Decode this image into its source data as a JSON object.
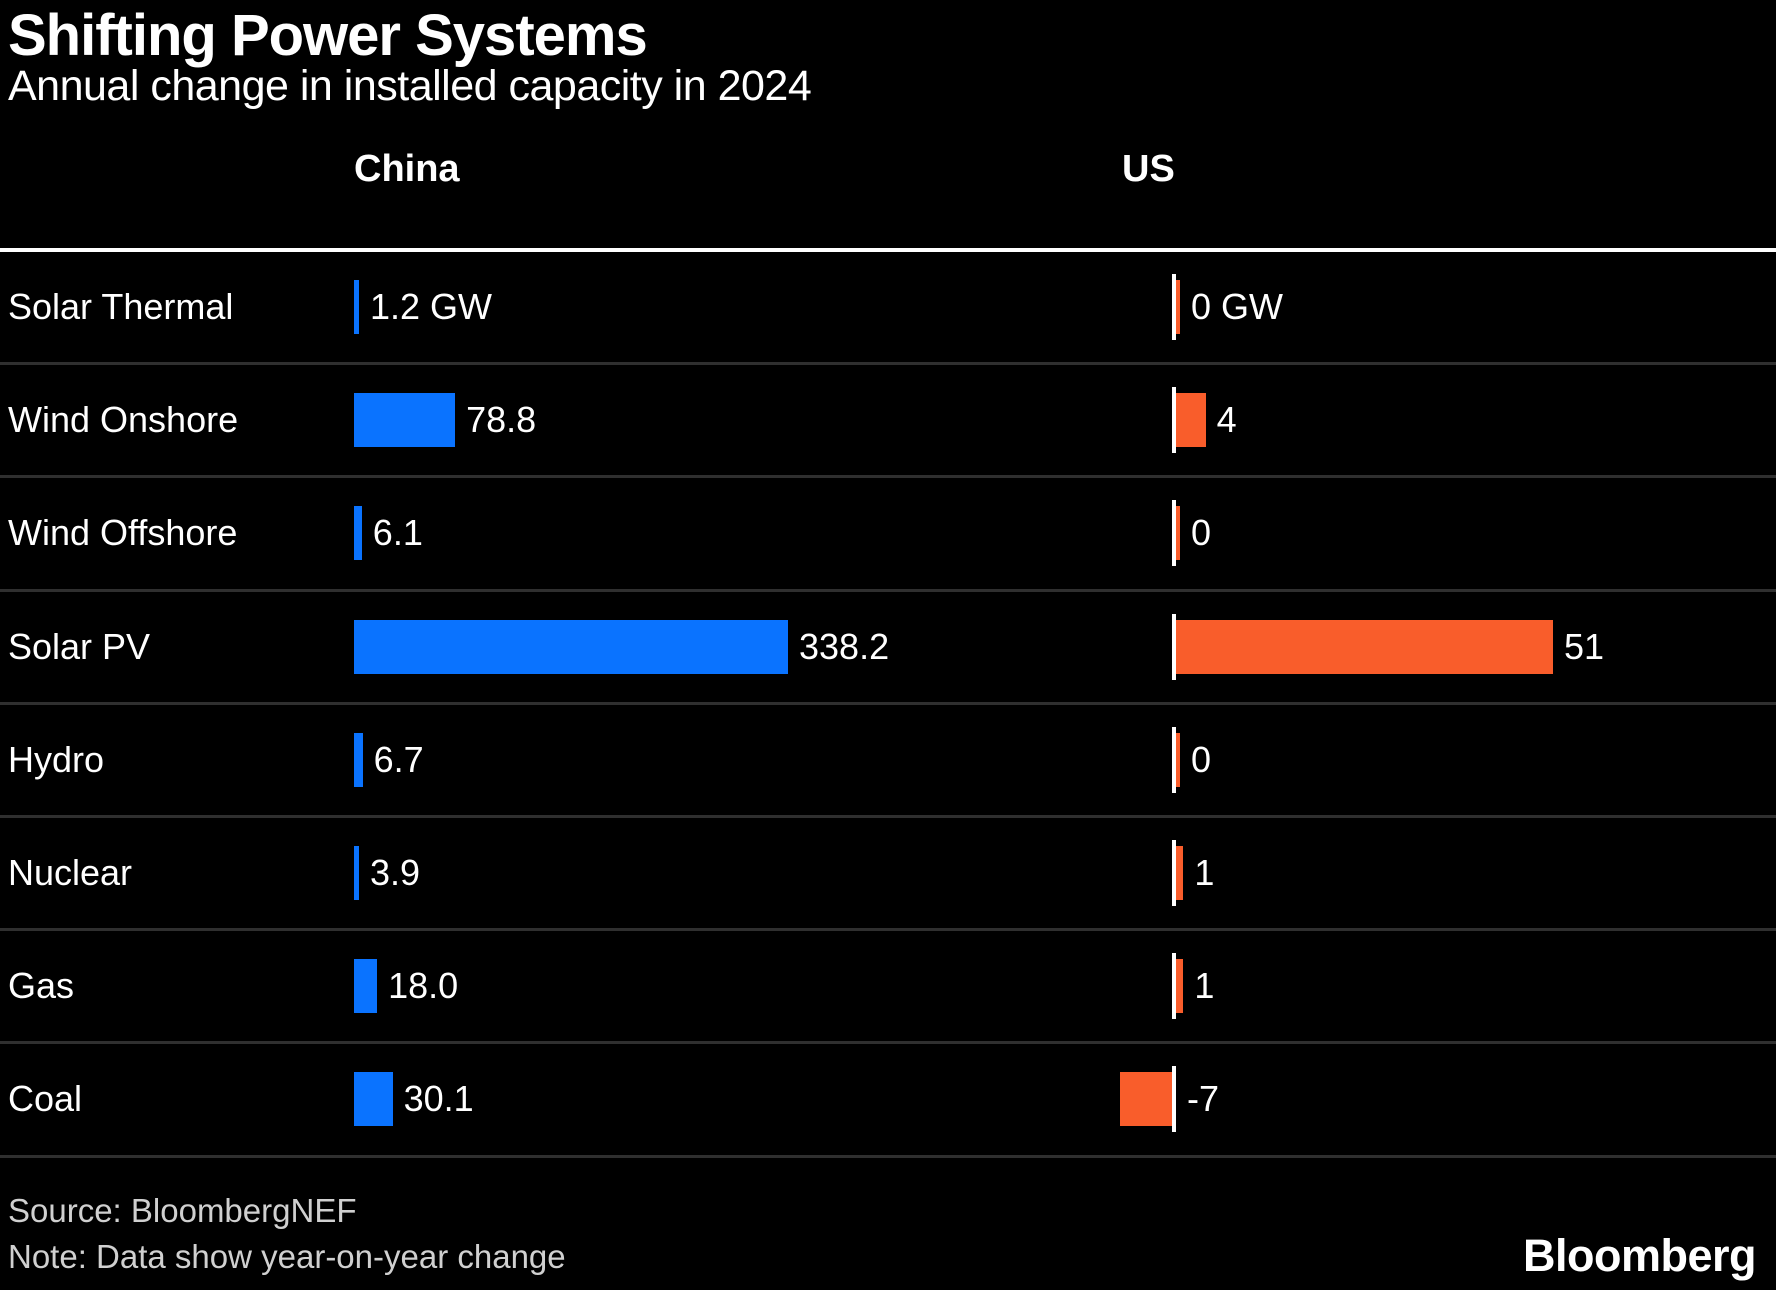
{
  "title": "Shifting Power Systems",
  "subtitle": "Annual change in installed capacity in 2024",
  "columns": {
    "china": {
      "label": "China",
      "color": "#0a73ff"
    },
    "us": {
      "label": "US",
      "color": "#f95d2b"
    }
  },
  "chart_data": {
    "type": "bar",
    "orientation": "horizontal",
    "unit": "GW",
    "title": "Shifting Power Systems",
    "subtitle": "Annual change in installed capacity in 2024",
    "categories": [
      "Solar Thermal",
      "Wind Onshore",
      "Wind Offshore",
      "Solar PV",
      "Hydro",
      "Nuclear",
      "Gas",
      "Coal"
    ],
    "series": [
      {
        "name": "China",
        "color": "#0a73ff",
        "values": [
          1.2,
          78.8,
          6.1,
          338.2,
          6.7,
          3.9,
          18.0,
          30.1
        ],
        "labels": [
          "1.2 GW",
          "78.8",
          "6.1",
          "338.2",
          "6.7",
          "3.9",
          "18.0",
          "30.1"
        ]
      },
      {
        "name": "US",
        "color": "#f95d2b",
        "values": [
          0,
          4,
          0,
          51,
          0,
          1,
          1,
          -7
        ],
        "labels": [
          "0 GW",
          "4",
          "0",
          "51",
          "0",
          "1",
          "1",
          "-7"
        ]
      }
    ],
    "layout_hints": {
      "grid": "row-separators-only",
      "legend": "column-headers",
      "zero_axis_line": "us-column-only"
    }
  },
  "footer": {
    "source": "Source: BloombergNEF",
    "note": "Note: Data show year-on-year change",
    "logo": "Bloomberg"
  }
}
